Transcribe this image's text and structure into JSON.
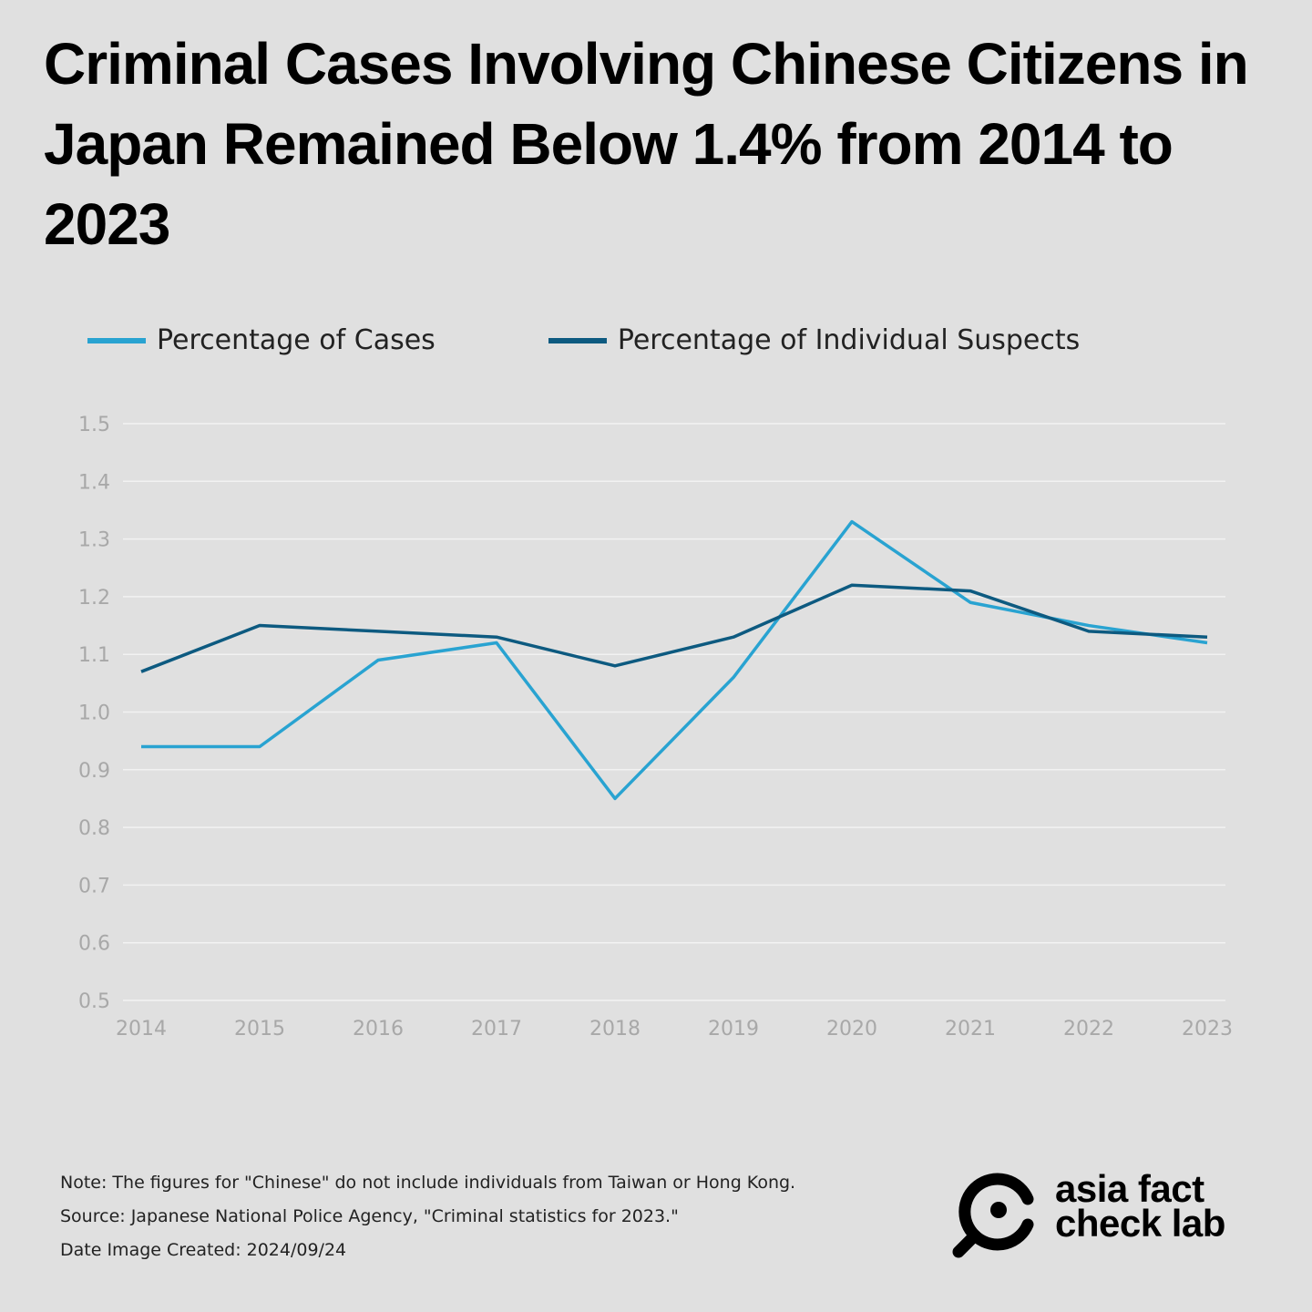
{
  "title": "Criminal Cases Involving Chinese Citizens in Japan Remained Below 1.4% from 2014 to 2023",
  "chart_data": {
    "type": "line",
    "title": "Criminal Cases Involving Chinese Citizens in Japan Remained Below 1.4% from 2014 to 2023",
    "xlabel": "",
    "ylabel": "",
    "x": [
      "2014",
      "2015",
      "2016",
      "2017",
      "2018",
      "2019",
      "2020",
      "2021",
      "2022",
      "2023"
    ],
    "ylim": [
      0.5,
      1.5
    ],
    "yticks": [
      "0.5",
      "0.6",
      "0.7",
      "0.8",
      "0.9",
      "1.0",
      "1.1",
      "1.2",
      "1.3",
      "1.4",
      "1.5"
    ],
    "grid": true,
    "legend_position": "top-left",
    "series": [
      {
        "name": "Percentage of Cases",
        "color": "#29a3d1",
        "values": [
          0.94,
          0.94,
          1.09,
          1.12,
          0.85,
          1.06,
          1.33,
          1.19,
          1.15,
          1.12
        ]
      },
      {
        "name": "Percentage of Individual Suspects",
        "color": "#0d5a80",
        "values": [
          1.07,
          1.15,
          1.14,
          1.13,
          1.08,
          1.13,
          1.22,
          1.21,
          1.14,
          1.13
        ]
      }
    ]
  },
  "notes": {
    "note": "Note: The figures for \"Chinese\" do not include individuals from Taiwan or Hong Kong.",
    "source": "Source: Japanese National Police Agency, \"Criminal statistics for 2023.\"",
    "date": "Date Image Created: 2024/09/24"
  },
  "logo": {
    "line1": "asia fact",
    "line2": "check lab"
  }
}
